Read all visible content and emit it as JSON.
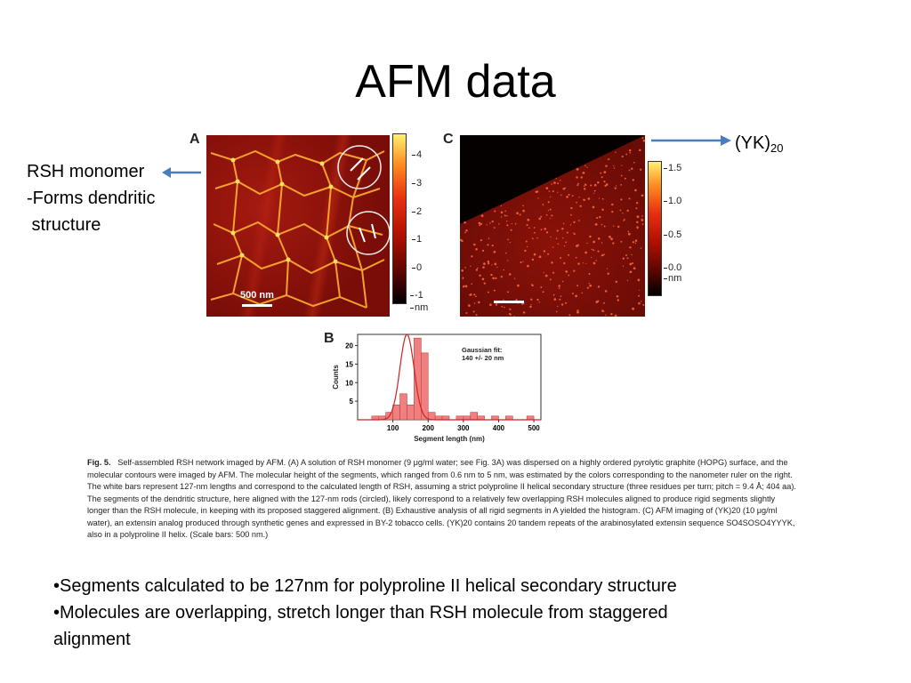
{
  "slide": {
    "title": "AFM data"
  },
  "annotations": {
    "left_line1": "RSH monomer",
    "left_line2": "-Forms dendritic",
    "left_line3": " structure",
    "right_text": "(YK)",
    "right_sub": "20"
  },
  "figure": {
    "panel_a_label": "A",
    "panel_b_label": "B",
    "panel_c_label": "C",
    "scale_label_a": "500 nm",
    "colorbar_a_ticks": [
      "4",
      "3",
      "2",
      "1",
      "0",
      "-1"
    ],
    "colorbar_a_unit": "nm",
    "colorbar_c_ticks": [
      "1.5",
      "1.0",
      "0.5",
      "0.0"
    ],
    "colorbar_c_unit": "nm",
    "caption": {
      "fig_label": "Fig. 5.",
      "text": "Self-assembled RSH network imaged by AFM. (A) A solution of RSH monomer (9 μg/ml water; see Fig. 3A) was dispersed on a highly ordered pyrolytic graphite (HOPG) surface, and the molecular contours were imaged by AFM. The molecular height of the segments, which ranged from 0.6 nm to 5 nm, was estimated by the colors corresponding to the nanometer ruler on the right. The white bars represent 127-nm lengths and correspond to the calculated length of RSH, assuming a strict polyproline II helical secondary structure (three residues per turn; pitch = 9.4 Å; 404 aa). The segments of the dendritic structure, here aligned with the 127-nm rods (circled), likely correspond to a relatively few overlapping RSH molecules aligned to produce rigid segments slightly longer than the RSH molecule, in keeping with its proposed staggered alignment. (B) Exhaustive analysis of all rigid segments in A yielded the histogram. (C) AFM imaging of (YK)20 (10 μg/ml water), an extensin analog produced through synthetic genes and expressed in BY-2 tobacco cells. (YK)20 contains 20 tandem repeats of the arabinosylated extensin sequence SO4SOSO4YYYK, also in a polyproline II helix. (Scale bars: 500 nm.)"
    }
  },
  "chart_data": {
    "type": "bar",
    "xlabel": "Segment length (nm)",
    "ylabel": "Counts",
    "xlim": [
      0,
      520
    ],
    "ylim": [
      0,
      23
    ],
    "xticks": [
      100,
      200,
      300,
      400,
      500
    ],
    "yticks": [
      5,
      10,
      15,
      20
    ],
    "bin_width": 20,
    "bins": [
      10,
      30,
      50,
      70,
      90,
      110,
      130,
      150,
      170,
      190,
      210,
      230,
      250,
      270,
      290,
      310,
      330,
      350,
      370,
      390,
      410,
      430,
      450,
      470,
      490
    ],
    "values": [
      0,
      0,
      1,
      1,
      2,
      4,
      7,
      4,
      22,
      18,
      2,
      1,
      1,
      0,
      1,
      1,
      2,
      1,
      0,
      1,
      0,
      1,
      0,
      0,
      1
    ],
    "annotation_line1": "Gaussian fit:",
    "annotation_line2": "140 +/- 20 nm",
    "fit": {
      "mean": 140,
      "sd": 20,
      "peak": 23
    }
  },
  "bullets": [
    "•Segments calculated to be 127nm for polyproline II helical secondary structure",
    "•Molecules are overlapping, stretch longer than RSH molecule from staggered",
    "alignment"
  ],
  "colors": {
    "arrow": "#4a7ebb",
    "bar_fill": "#f08080",
    "bar_stroke": "#c04040",
    "fit_line": "#d02020"
  }
}
